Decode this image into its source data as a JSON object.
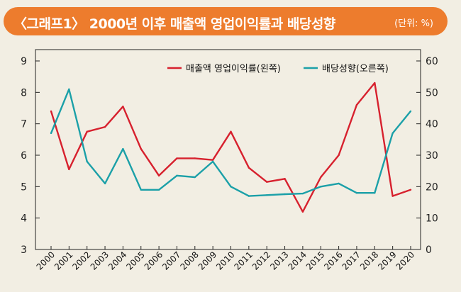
{
  "header": {
    "title": "〈그래프1〉 2000년 이후 매출액 영업이익률과 배당성향",
    "unit": "(단위: %)"
  },
  "chart_data": {
    "type": "line",
    "x": [
      "2000",
      "2001",
      "2002",
      "2003",
      "2004",
      "2005",
      "2006",
      "2007",
      "2008",
      "2009",
      "2010",
      "2011",
      "2012",
      "2013",
      "2014",
      "2015",
      "2016",
      "2017",
      "2018",
      "2019",
      "2020"
    ],
    "series": [
      {
        "name": "매출액 영업이익률(왼쪽)",
        "axis": "left",
        "color": "#d7212e",
        "values": [
          7.4,
          5.55,
          6.75,
          6.9,
          7.55,
          6.2,
          5.35,
          5.9,
          5.9,
          5.85,
          6.75,
          5.6,
          5.15,
          5.25,
          4.2,
          5.3,
          6.0,
          7.6,
          8.3,
          4.7,
          4.9
        ]
      },
      {
        "name": "배당성향(오른쪽)",
        "axis": "right",
        "color": "#1ba0a8",
        "values": [
          37,
          51,
          28,
          21,
          32,
          19,
          19,
          23.5,
          23,
          28,
          20,
          17,
          17.3,
          17.6,
          17.8,
          20,
          21,
          18,
          18,
          37,
          44
        ]
      }
    ],
    "y_left": {
      "min": 3,
      "max": 9,
      "ticks": [
        "3",
        "4",
        "5",
        "6",
        "7",
        "8",
        "9"
      ]
    },
    "y_right": {
      "min": 0,
      "max": 60,
      "ticks": [
        "0",
        "10",
        "20",
        "30",
        "40",
        "50",
        "60"
      ]
    },
    "legend_position": "top-right",
    "grid": false
  }
}
